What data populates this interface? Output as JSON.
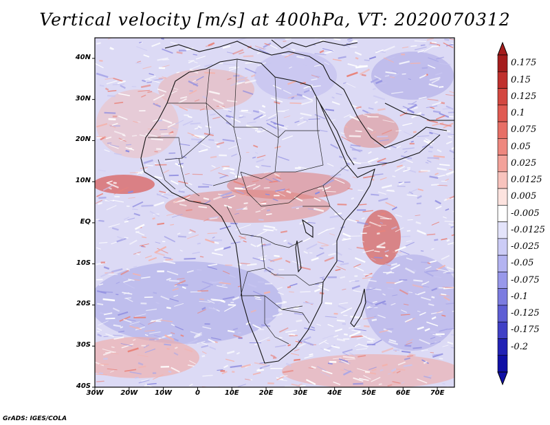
{
  "title": "Vertical velocity [m/s] at 400hPa, VT: 2020070312",
  "credit": "GrADS: IGES/COLA",
  "lat_labels": [
    "40N",
    "30N",
    "20N",
    "10N",
    "EQ",
    "10S",
    "20S",
    "30S",
    "40S"
  ],
  "lon_labels": [
    "30W",
    "20W",
    "10W",
    "0",
    "10E",
    "20E",
    "30E",
    "40E",
    "50E",
    "60E",
    "70E"
  ],
  "extent": {
    "lon_min": -30,
    "lon_max": 75,
    "lat_min": -40,
    "lat_max": 45
  },
  "colorbar": {
    "labels": [
      "0.175",
      "0.15",
      "0.125",
      "0.1",
      "0.075",
      "0.05",
      "0.025",
      "0.0125",
      "0.005",
      "-0.005",
      "-0.0125",
      "-0.025",
      "-0.05",
      "-0.075",
      "-0.1",
      "-0.125",
      "-0.175",
      "-0.2"
    ],
    "colors": [
      "#a51d1d",
      "#c0302d",
      "#d34740",
      "#e05a52",
      "#e76f66",
      "#ee877e",
      "#f3a29a",
      "#f8c3bd",
      "#fde3df",
      "#ffffff",
      "#e4e4fb",
      "#ccccf6",
      "#b3b3f1",
      "#9898ea",
      "#7c7ce0",
      "#5e5ed4",
      "#4040c6",
      "#2222b5",
      "#1010a5"
    ]
  }
}
